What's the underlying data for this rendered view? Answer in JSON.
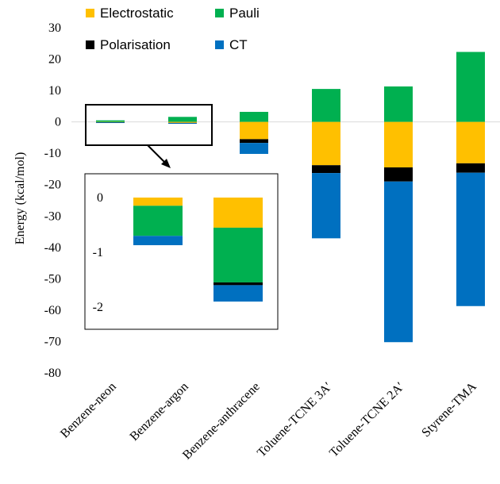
{
  "chart_data": [
    {
      "type": "bar",
      "stacked": true,
      "categories": [
        "Benzene-neon",
        "Benzene-argon",
        "Benzene-anthracene",
        "Toluene-TCNE 3A′",
        "Toluene-TCNE 2A′",
        "Styrene-TMA"
      ],
      "ylabel": "Energy (kcal/mol)",
      "ylim": [
        -80,
        30
      ],
      "yticks": [
        30,
        20,
        10,
        0,
        -10,
        -20,
        -30,
        -40,
        -50,
        -60,
        -70,
        -80
      ],
      "grid": false,
      "legend": "top-left",
      "series": [
        {
          "name": "Electrostatic",
          "color": "#FFC000",
          "values": [
            -0.1,
            -0.3,
            -5.5,
            -13.8,
            -14.5,
            -13.2
          ]
        },
        {
          "name": "Pauli",
          "color": "#00B050",
          "values": [
            0.5,
            1.6,
            3.2,
            10.5,
            11.3,
            22.3
          ]
        },
        {
          "name": "Polarisation",
          "color": "#000000",
          "values": [
            -0.05,
            -0.06,
            -1.2,
            -2.5,
            -4.5,
            -3.0
          ]
        },
        {
          "name": "CT",
          "color": "#0070C0",
          "values": [
            -0.2,
            -0.25,
            -3.5,
            -20.8,
            -51.2,
            -42.5
          ]
        }
      ]
    },
    {
      "type": "bar",
      "stacked": true,
      "inset": true,
      "categories": [
        "Benzene-neon",
        "Benzene-argon"
      ],
      "ylim": [
        -2,
        0.1
      ],
      "yticks": [
        0,
        -1,
        -2
      ],
      "segments": [
        [
          {
            "series": "Electrostatic",
            "from": 0,
            "to": -0.15
          },
          {
            "series": "Pauli",
            "from": -0.15,
            "to": -0.7
          },
          {
            "series": "CT",
            "from": -0.7,
            "to": -0.87
          }
        ],
        [
          {
            "series": "Electrostatic",
            "from": 0,
            "to": -0.55
          },
          {
            "series": "Pauli",
            "from": -0.55,
            "to": -1.55
          },
          {
            "series": "Polarisation",
            "from": -1.55,
            "to": -1.6
          },
          {
            "series": "CT",
            "from": -1.6,
            "to": -1.9
          }
        ]
      ]
    }
  ]
}
